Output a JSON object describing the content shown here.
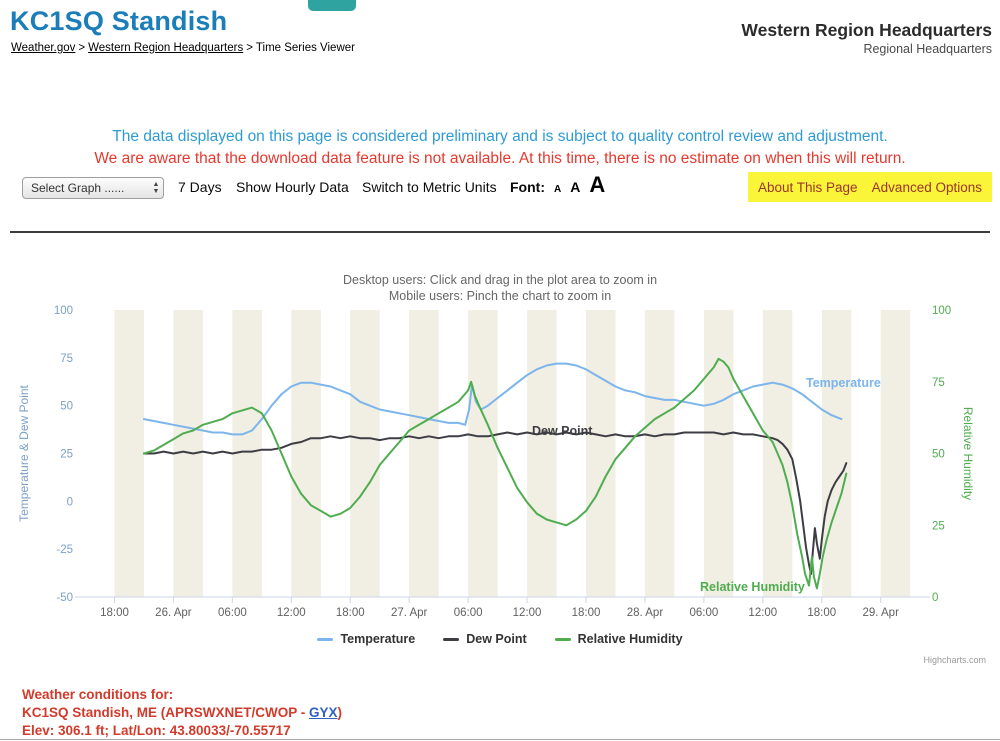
{
  "header": {
    "top_button_label": "",
    "station_title": "KC1SQ Standish",
    "breadcrumb": {
      "links": [
        "Weather.gov",
        "Western Region Headquarters"
      ],
      "separator": ">",
      "current": "Time Series Viewer"
    },
    "org_title": "Western Region Headquarters",
    "org_subtitle": "Regional Headquarters"
  },
  "notices": {
    "preliminary": "The data displayed on this page is considered preliminary and is subject to quality control review and adjustment.",
    "download": "We are aware that the download data feature is not available. At this time, there is no estimate on when this will return."
  },
  "toolbar": {
    "select_graph": "Select Graph ......",
    "days": "7 Days",
    "hourly": "Show Hourly Data",
    "metric": "Switch to Metric Units",
    "font_label": "Font:",
    "font_sizes": [
      "A",
      "A",
      "A"
    ],
    "about": "About This Page",
    "advanced": "Advanced Options"
  },
  "chart": {
    "subtitle1": "Desktop users: Click and drag in the plot area to zoom in",
    "subtitle2": "Mobile users: Pinch the chart to zoom in",
    "credits": "Highcharts.com"
  },
  "chart_data": {
    "type": "line",
    "band_color": "#f1eee3",
    "x_axis": {
      "range_hours": [
        0,
        85
      ],
      "ticks": [
        {
          "t": 3,
          "label": "18:00"
        },
        {
          "t": 9,
          "label": "26. Apr"
        },
        {
          "t": 15,
          "label": "06:00"
        },
        {
          "t": 21,
          "label": "12:00"
        },
        {
          "t": 27,
          "label": "18:00"
        },
        {
          "t": 33,
          "label": "27. Apr"
        },
        {
          "t": 39,
          "label": "06:00"
        },
        {
          "t": 45,
          "label": "12:00"
        },
        {
          "t": 51,
          "label": "18:00"
        },
        {
          "t": 57,
          "label": "28. Apr"
        },
        {
          "t": 63,
          "label": "06:00"
        },
        {
          "t": 69,
          "label": "12:00"
        },
        {
          "t": 75,
          "label": "18:00"
        },
        {
          "t": 81,
          "label": "29. Apr"
        }
      ]
    },
    "y_axis_left": {
      "title": "Temperature & Dew Point",
      "min": -50,
      "max": 100,
      "ticks": [
        100,
        75,
        50,
        25,
        0,
        -25,
        -50
      ],
      "color": "#7ca0c8"
    },
    "y_axis_right": {
      "title": "Relative Humidity",
      "min": 0,
      "max": 100,
      "ticks": [
        100,
        75,
        50,
        25,
        0
      ],
      "color": "#4fad4f"
    },
    "legend_position": "bottom-center",
    "series": [
      {
        "name": "Temperature",
        "axis": "left",
        "color": "#7cb5ec",
        "points": [
          [
            6,
            43
          ],
          [
            7,
            42
          ],
          [
            8,
            41
          ],
          [
            9,
            40
          ],
          [
            10,
            39
          ],
          [
            11,
            38
          ],
          [
            12,
            37
          ],
          [
            13,
            36
          ],
          [
            14,
            36
          ],
          [
            15,
            35
          ],
          [
            16,
            35
          ],
          [
            17,
            37
          ],
          [
            18,
            43
          ],
          [
            19,
            50
          ],
          [
            20,
            56
          ],
          [
            21,
            60
          ],
          [
            22,
            62
          ],
          [
            23,
            62
          ],
          [
            24,
            61
          ],
          [
            25,
            60
          ],
          [
            26,
            58
          ],
          [
            27,
            56
          ],
          [
            28,
            52
          ],
          [
            29,
            50
          ],
          [
            30,
            48
          ],
          [
            31,
            47
          ],
          [
            32,
            46
          ],
          [
            33,
            45
          ],
          [
            34,
            44
          ],
          [
            35,
            43
          ],
          [
            36,
            42
          ],
          [
            37,
            41
          ],
          [
            38,
            41
          ],
          [
            38.7,
            40
          ],
          [
            39.1,
            48
          ],
          [
            39.4,
            61
          ],
          [
            39.8,
            52
          ],
          [
            40.3,
            48
          ],
          [
            41,
            50
          ],
          [
            42,
            54
          ],
          [
            43,
            58
          ],
          [
            44,
            62
          ],
          [
            45,
            66
          ],
          [
            46,
            69
          ],
          [
            47,
            71
          ],
          [
            48,
            72
          ],
          [
            49,
            72
          ],
          [
            50,
            71
          ],
          [
            51,
            69
          ],
          [
            52,
            66
          ],
          [
            53,
            63
          ],
          [
            54,
            60
          ],
          [
            55,
            58
          ],
          [
            56,
            57
          ],
          [
            57,
            55
          ],
          [
            58,
            54
          ],
          [
            59,
            53
          ],
          [
            60,
            53
          ],
          [
            61,
            52
          ],
          [
            62,
            51
          ],
          [
            63,
            50
          ],
          [
            64,
            51
          ],
          [
            65,
            53
          ],
          [
            66,
            56
          ],
          [
            67,
            58
          ],
          [
            68,
            60
          ],
          [
            69,
            61
          ],
          [
            70,
            62
          ],
          [
            71,
            61
          ],
          [
            72,
            59
          ],
          [
            73,
            56
          ],
          [
            74,
            52
          ],
          [
            75,
            48
          ],
          [
            76,
            45
          ],
          [
            77,
            43
          ]
        ]
      },
      {
        "name": "Dew Point",
        "axis": "left",
        "color": "#3d3d44",
        "points": [
          [
            6,
            25
          ],
          [
            7,
            25
          ],
          [
            8,
            26
          ],
          [
            9,
            25
          ],
          [
            10,
            26
          ],
          [
            11,
            25
          ],
          [
            12,
            26
          ],
          [
            13,
            25
          ],
          [
            14,
            26
          ],
          [
            15,
            25
          ],
          [
            16,
            26
          ],
          [
            17,
            26
          ],
          [
            18,
            27
          ],
          [
            19,
            27
          ],
          [
            20,
            28
          ],
          [
            21,
            30
          ],
          [
            22,
            31
          ],
          [
            23,
            33
          ],
          [
            24,
            33
          ],
          [
            25,
            34
          ],
          [
            26,
            33
          ],
          [
            27,
            34
          ],
          [
            28,
            33
          ],
          [
            29,
            33
          ],
          [
            30,
            32
          ],
          [
            31,
            33
          ],
          [
            32,
            33
          ],
          [
            33,
            34
          ],
          [
            34,
            33
          ],
          [
            35,
            34
          ],
          [
            36,
            33
          ],
          [
            37,
            34
          ],
          [
            38,
            34
          ],
          [
            39,
            35
          ],
          [
            40,
            34
          ],
          [
            41,
            34
          ],
          [
            42,
            35
          ],
          [
            43,
            36
          ],
          [
            44,
            35
          ],
          [
            45,
            36
          ],
          [
            46,
            35
          ],
          [
            47,
            36
          ],
          [
            48,
            35
          ],
          [
            49,
            36
          ],
          [
            50,
            35
          ],
          [
            51,
            36
          ],
          [
            52,
            35
          ],
          [
            53,
            34
          ],
          [
            54,
            35
          ],
          [
            55,
            34
          ],
          [
            56,
            34
          ],
          [
            57,
            35
          ],
          [
            58,
            34
          ],
          [
            59,
            35
          ],
          [
            60,
            35
          ],
          [
            61,
            36
          ],
          [
            62,
            36
          ],
          [
            63,
            36
          ],
          [
            64,
            36
          ],
          [
            65,
            35
          ],
          [
            66,
            36
          ],
          [
            67,
            35
          ],
          [
            68,
            35
          ],
          [
            69,
            34
          ],
          [
            70,
            33
          ],
          [
            70.5,
            32
          ],
          [
            71,
            30
          ],
          [
            71.5,
            27
          ],
          [
            72,
            22
          ],
          [
            72.4,
            12
          ],
          [
            72.8,
            0
          ],
          [
            73.1,
            -12
          ],
          [
            73.4,
            -24
          ],
          [
            73.7,
            -33
          ],
          [
            73.9,
            -38
          ],
          [
            74.1,
            -26
          ],
          [
            74.3,
            -14
          ],
          [
            74.5,
            -22
          ],
          [
            74.8,
            -30
          ],
          [
            75,
            -20
          ],
          [
            75.3,
            -8
          ],
          [
            75.6,
            0
          ],
          [
            76,
            6
          ],
          [
            76.4,
            10
          ],
          [
            76.8,
            13
          ],
          [
            77.2,
            16
          ],
          [
            77.5,
            20
          ]
        ]
      },
      {
        "name": "Relative Humidity",
        "axis": "right",
        "color": "#4fad4f",
        "points": [
          [
            6,
            50
          ],
          [
            7,
            51
          ],
          [
            8,
            53
          ],
          [
            9,
            55
          ],
          [
            10,
            57
          ],
          [
            11,
            58
          ],
          [
            12,
            60
          ],
          [
            13,
            61
          ],
          [
            14,
            62
          ],
          [
            15,
            64
          ],
          [
            16,
            65
          ],
          [
            17,
            66
          ],
          [
            18,
            64
          ],
          [
            19,
            58
          ],
          [
            20,
            50
          ],
          [
            21,
            42
          ],
          [
            22,
            36
          ],
          [
            23,
            32
          ],
          [
            24,
            30
          ],
          [
            25,
            28
          ],
          [
            26,
            29
          ],
          [
            27,
            31
          ],
          [
            28,
            35
          ],
          [
            29,
            40
          ],
          [
            30,
            46
          ],
          [
            31,
            50
          ],
          [
            32,
            54
          ],
          [
            33,
            58
          ],
          [
            34,
            60
          ],
          [
            35,
            62
          ],
          [
            36,
            64
          ],
          [
            37,
            66
          ],
          [
            38,
            68
          ],
          [
            39,
            72
          ],
          [
            39.3,
            75
          ],
          [
            39.7,
            70
          ],
          [
            40.2,
            66
          ],
          [
            41,
            60
          ],
          [
            42,
            52
          ],
          [
            43,
            45
          ],
          [
            44,
            38
          ],
          [
            45,
            33
          ],
          [
            46,
            29
          ],
          [
            47,
            27
          ],
          [
            48,
            26
          ],
          [
            49,
            25
          ],
          [
            50,
            27
          ],
          [
            51,
            30
          ],
          [
            52,
            35
          ],
          [
            53,
            42
          ],
          [
            54,
            48
          ],
          [
            55,
            52
          ],
          [
            56,
            56
          ],
          [
            57,
            59
          ],
          [
            58,
            62
          ],
          [
            59,
            64
          ],
          [
            60,
            66
          ],
          [
            61,
            69
          ],
          [
            62,
            72
          ],
          [
            63,
            76
          ],
          [
            64,
            80
          ],
          [
            64.5,
            83
          ],
          [
            65,
            82
          ],
          [
            65.5,
            80
          ],
          [
            66,
            76
          ],
          [
            67,
            70
          ],
          [
            68,
            64
          ],
          [
            69,
            58
          ],
          [
            70,
            54
          ],
          [
            70.5,
            50
          ],
          [
            71,
            46
          ],
          [
            71.5,
            40
          ],
          [
            72,
            32
          ],
          [
            72.5,
            22
          ],
          [
            73,
            14
          ],
          [
            73.3,
            8
          ],
          [
            73.7,
            4
          ],
          [
            74,
            14
          ],
          [
            74.2,
            7
          ],
          [
            74.5,
            3
          ],
          [
            74.8,
            8
          ],
          [
            75.1,
            14
          ],
          [
            75.5,
            20
          ],
          [
            76,
            26
          ],
          [
            76.5,
            31
          ],
          [
            77,
            36
          ],
          [
            77.5,
            43
          ]
        ]
      }
    ]
  },
  "footer": {
    "heading": "Weather conditions for:",
    "station_prefix": "KC1SQ Standish, ME (APRSWXNET/CWOP - ",
    "station_link": "GYX",
    "station_suffix": ")",
    "elev_line": "Elev: 306.1 ft; Lat/Lon: 43.80033/-70.55717"
  }
}
